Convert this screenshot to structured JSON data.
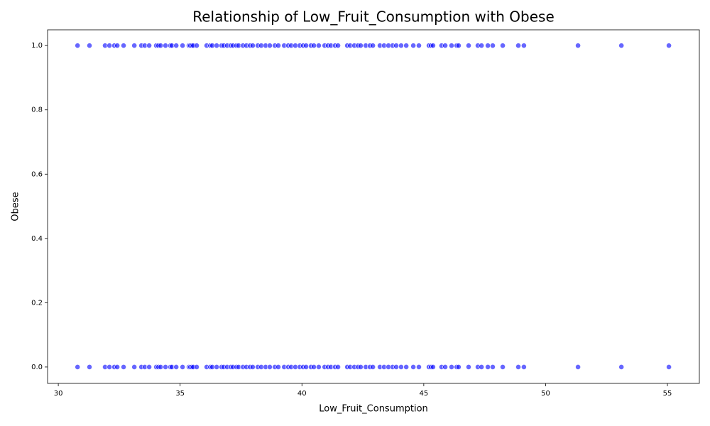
{
  "chart_data": {
    "type": "scatter",
    "title": "Relationship of Low_Fruit_Consumption with Obese",
    "x_label": "Low_Fruit_Consumption",
    "y_label": "Obese",
    "xlim": [
      29.56,
      56.31
    ],
    "ylim": [
      -0.051,
      1.049
    ],
    "xticks": [
      30,
      35,
      40,
      45,
      50,
      55
    ],
    "yticks": [
      {
        "value": 0,
        "label": "0.0"
      },
      {
        "value": 0.2,
        "label": "0.2"
      },
      {
        "value": 0.4,
        "label": "0.4"
      },
      {
        "value": 0.6,
        "label": "0.6"
      },
      {
        "value": 0.8,
        "label": "0.8"
      },
      {
        "value": 1,
        "label": "1.0"
      }
    ],
    "color": "#0000ff",
    "x": [
      30.79,
      31.28,
      31.92,
      32.1,
      32.3,
      32.42,
      32.68,
      33.12,
      33.41,
      33.55,
      33.73,
      34.02,
      34.11,
      34.2,
      34.4,
      34.6,
      34.66,
      34.84,
      35.1,
      35.36,
      35.42,
      35.48,
      35.54,
      35.68,
      36.09,
      36.24,
      36.32,
      36.5,
      36.7,
      36.79,
      36.93,
      37.08,
      37.17,
      37.31,
      37.4,
      37.58,
      37.72,
      37.87,
      37.98,
      38.19,
      38.33,
      38.51,
      38.68,
      38.89,
      39.03,
      39.27,
      39.44,
      39.56,
      39.73,
      39.91,
      40.05,
      40.17,
      40.37,
      40.49,
      40.69,
      40.93,
      41.07,
      41.19,
      41.36,
      41.48,
      41.86,
      41.98,
      42.15,
      42.3,
      42.41,
      42.62,
      42.79,
      42.91,
      43.2,
      43.37,
      43.55,
      43.72,
      43.87,
      44.07,
      44.28,
      44.57,
      44.8,
      45.21,
      45.3,
      45.38,
      45.73,
      45.88,
      46.14,
      46.35,
      46.43,
      46.84,
      47.22,
      47.37,
      47.63,
      47.83,
      48.24,
      48.88,
      49.11,
      51.33,
      53.11,
      55.06,
      30.79,
      31.28,
      31.92,
      32.1,
      32.3,
      32.42,
      32.68,
      33.12,
      33.41,
      33.55,
      33.73,
      34.02,
      34.11,
      34.2,
      34.4,
      34.6,
      34.66,
      34.84,
      35.1,
      35.36,
      35.42,
      35.48,
      35.54,
      35.68,
      36.09,
      36.24,
      36.32,
      36.5,
      36.7,
      36.79,
      36.93,
      37.08,
      37.17,
      37.31,
      37.4,
      37.58,
      37.72,
      37.87,
      37.98,
      38.19,
      38.33,
      38.51,
      38.68,
      38.89,
      39.03,
      39.27,
      39.44,
      39.56,
      39.73,
      39.91,
      40.05,
      40.17,
      40.37,
      40.49,
      40.69,
      40.93,
      41.07,
      41.19,
      41.36,
      41.48,
      41.86,
      41.98,
      42.15,
      42.3,
      42.41,
      42.62,
      42.79,
      42.91,
      43.2,
      43.37,
      43.55,
      43.72,
      43.87,
      44.07,
      44.28,
      44.57,
      44.8,
      45.21,
      45.3,
      45.38,
      45.73,
      45.88,
      46.14,
      46.35,
      46.43,
      46.84,
      47.22,
      47.37,
      47.63,
      47.83,
      48.24,
      48.88,
      49.11,
      51.33,
      53.11,
      55.06
    ],
    "values": [
      1,
      1,
      1,
      1,
      1,
      1,
      1,
      1,
      1,
      1,
      1,
      1,
      1,
      1,
      1,
      1,
      1,
      1,
      1,
      1,
      1,
      1,
      1,
      1,
      1,
      1,
      1,
      1,
      1,
      1,
      1,
      1,
      1,
      1,
      1,
      1,
      1,
      1,
      1,
      1,
      1,
      1,
      1,
      1,
      1,
      1,
      1,
      1,
      1,
      1,
      1,
      1,
      1,
      1,
      1,
      1,
      1,
      1,
      1,
      1,
      1,
      1,
      1,
      1,
      1,
      1,
      1,
      1,
      1,
      1,
      1,
      1,
      1,
      1,
      1,
      1,
      1,
      1,
      1,
      1,
      1,
      1,
      1,
      1,
      1,
      1,
      1,
      1,
      1,
      1,
      1,
      1,
      1,
      1,
      1,
      1,
      0,
      0,
      0,
      0,
      0,
      0,
      0,
      0,
      0,
      0,
      0,
      0,
      0,
      0,
      0,
      0,
      0,
      0,
      0,
      0,
      0,
      0,
      0,
      0,
      0,
      0,
      0,
      0,
      0,
      0,
      0,
      0,
      0,
      0,
      0,
      0,
      0,
      0,
      0,
      0,
      0,
      0,
      0,
      0,
      0,
      0,
      0,
      0,
      0,
      0,
      0,
      0,
      0,
      0,
      0,
      0,
      0,
      0,
      0,
      0,
      0,
      0,
      0,
      0,
      0,
      0,
      0,
      0,
      0,
      0,
      0,
      0,
      0,
      0,
      0,
      0,
      0,
      0,
      0,
      0,
      0,
      0,
      0,
      0,
      0,
      0,
      0,
      0,
      0,
      0,
      0,
      0,
      0,
      0,
      0,
      0
    ]
  }
}
